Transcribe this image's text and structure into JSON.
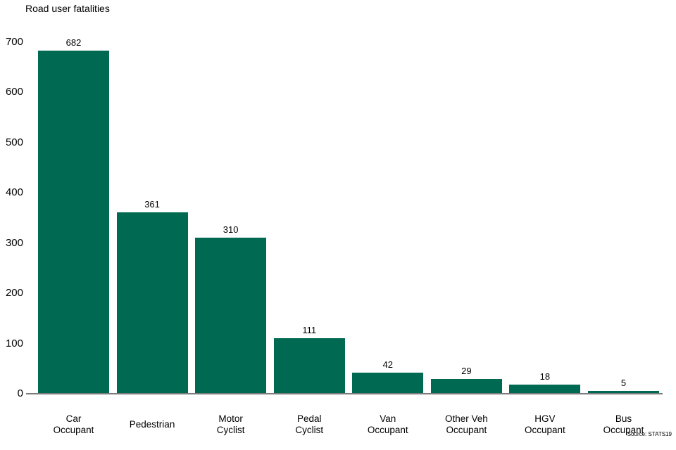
{
  "title": "Road user fatalities",
  "source_note": "Source: STATS19",
  "colors": {
    "bar": "#006952",
    "axis": "#7c7c7c",
    "text": "#000000",
    "background": "#ffffff"
  },
  "chart_data": {
    "type": "bar",
    "title": "Road user fatalities",
    "categories": [
      "Car Occupant",
      "Pedestrian",
      "Motor Cyclist",
      "Pedal Cyclist",
      "Van Occupant",
      "Other Veh Occupant",
      "HGV Occupant",
      "Bus Occupant"
    ],
    "category_lines": [
      [
        "Car",
        "Occupant"
      ],
      [
        "Pedestrian"
      ],
      [
        "Motor",
        "Cyclist"
      ],
      [
        "Pedal",
        "Cyclist"
      ],
      [
        "Van",
        "Occupant"
      ],
      [
        "Other Veh",
        "Occupant"
      ],
      [
        "HGV",
        "Occupant"
      ],
      [
        "Bus",
        "Occupant"
      ]
    ],
    "values": [
      682,
      361,
      310,
      111,
      42,
      29,
      18,
      5
    ],
    "value_labels_shown": true,
    "xlabel": "",
    "ylabel": "",
    "ylim": [
      0,
      700
    ],
    "yticks": [
      0,
      100,
      200,
      300,
      400,
      500,
      600,
      700
    ],
    "grid": false,
    "legend": "none",
    "bar_color": "#006952",
    "annotation": "Source: STATS19"
  }
}
